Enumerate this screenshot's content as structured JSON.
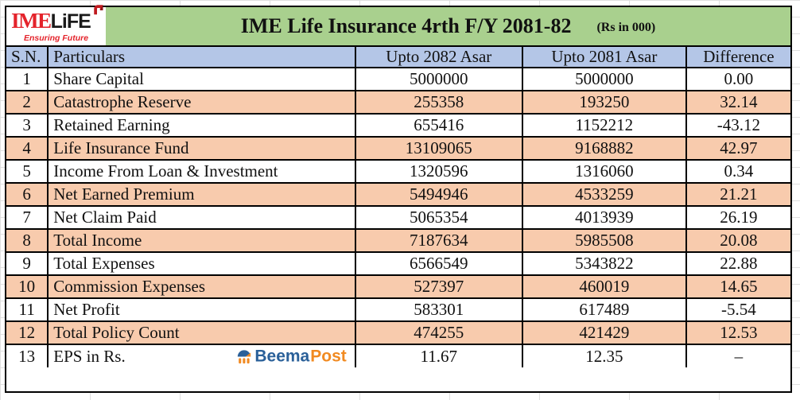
{
  "header": {
    "logo": {
      "ime": "IME",
      "life": "LiFE",
      "tagline": "Ensuring Future"
    },
    "title": "IME Life Insurance 4rth F/Y 2081-82",
    "units": "(Rs in 000)"
  },
  "table": {
    "columns": [
      "S.N.",
      "Particulars",
      "Upto 2082 Asar",
      "Upto 2081 Asar",
      "Difference"
    ],
    "rows": [
      {
        "sn": "1",
        "particular": "Share Capital",
        "upto_2082": "5000000",
        "upto_2081": "5000000",
        "difference": "0.00"
      },
      {
        "sn": "2",
        "particular": "Catastrophe Reserve",
        "upto_2082": "255358",
        "upto_2081": "193250",
        "difference": "32.14"
      },
      {
        "sn": "3",
        "particular": "Retained Earning",
        "upto_2082": "655416",
        "upto_2081": "1152212",
        "difference": "-43.12"
      },
      {
        "sn": "4",
        "particular": "Life Insurance Fund",
        "upto_2082": "13109065",
        "upto_2081": "9168882",
        "difference": "42.97"
      },
      {
        "sn": "5",
        "particular": "Income From Loan & Investment",
        "upto_2082": "1320596",
        "upto_2081": "1316060",
        "difference": "0.34"
      },
      {
        "sn": "6",
        "particular": "Net Earned Premium",
        "upto_2082": "5494946",
        "upto_2081": "4533259",
        "difference": "21.21"
      },
      {
        "sn": "7",
        "particular": "Net Claim Paid",
        "upto_2082": "5065354",
        "upto_2081": "4013939",
        "difference": "26.19"
      },
      {
        "sn": "8",
        "particular": "Total Income",
        "upto_2082": "7187634",
        "upto_2081": "5985508",
        "difference": "20.08"
      },
      {
        "sn": "9",
        "particular": "Total Expenses",
        "upto_2082": "6566549",
        "upto_2081": "5343822",
        "difference": "22.88"
      },
      {
        "sn": "10",
        "particular": "Commission Expenses",
        "upto_2082": "527397",
        "upto_2081": "460019",
        "difference": "14.65"
      },
      {
        "sn": "11",
        "particular": "Net Profit",
        "upto_2082": "583301",
        "upto_2081": "617489",
        "difference": "-5.54"
      },
      {
        "sn": "12",
        "particular": "Total Policy Count",
        "upto_2082": "474255",
        "upto_2081": "421429",
        "difference": "12.53"
      },
      {
        "sn": "13",
        "particular": "EPS in Rs.",
        "upto_2082": "11.67",
        "upto_2081": "12.35",
        "difference": "–",
        "watermark": true
      }
    ]
  },
  "watermark": {
    "beema": "Beema",
    "post": "Post"
  },
  "colors": {
    "title_band_green": "#a9d08e",
    "header_row_blue": "#b4c6e7",
    "alt_row_peach": "#f8cbad",
    "border_black": "#000000",
    "logo_red": "#e4232b",
    "beema_blue": "#2a6099",
    "beema_orange": "#f18a21"
  }
}
